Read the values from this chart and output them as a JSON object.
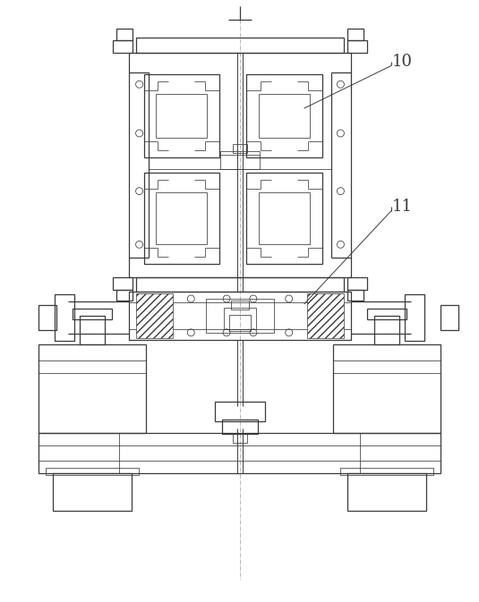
{
  "bg_color": "#ffffff",
  "lc": "#3a3a3a",
  "lc_thin": "#5a5a5a",
  "lc_center": "#888888",
  "label_color": "#3a3a3a",
  "fig_width": 5.35,
  "fig_height": 6.73,
  "label_10": "10",
  "label_11": "11"
}
